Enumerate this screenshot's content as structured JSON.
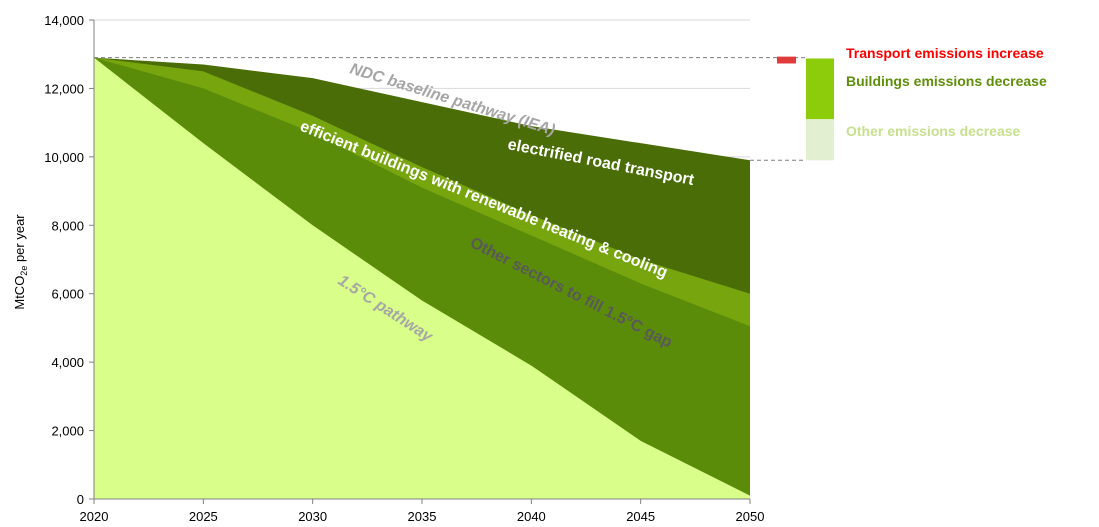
{
  "chart_data": {
    "type": "area",
    "x": [
      2020,
      2025,
      2030,
      2035,
      2040,
      2045,
      2050
    ],
    "ylabel": "MtCO2e per year",
    "ylabel_parts": {
      "main": "MtCO",
      "sub": "2e",
      "suffix": " per year"
    },
    "ylim": [
      0,
      14000
    ],
    "yticks": [
      0,
      2000,
      4000,
      6000,
      8000,
      10000,
      12000,
      14000
    ],
    "ytick_labels": [
      "0",
      "2,000",
      "4,000",
      "6,000",
      "8,000",
      "10,000",
      "12,000",
      "14,000"
    ],
    "xtick_labels": [
      "2020",
      "2025",
      "2030",
      "2035",
      "2040",
      "2045",
      "2050"
    ],
    "grid": true,
    "series": [
      {
        "key": "pathway_1_5",
        "values": [
          12900,
          10400,
          8000,
          5800,
          3900,
          1700,
          100
        ],
        "color": "#d9ff8a"
      },
      {
        "key": "other_sectors",
        "values": [
          12900,
          12000,
          10700,
          9100,
          7700,
          6300,
          5050
        ],
        "color": "#5a8c0a"
      },
      {
        "key": "buildings",
        "values": [
          12900,
          12500,
          11200,
          9700,
          8300,
          7000,
          6000
        ],
        "color": "#76a50e"
      },
      {
        "key": "ndc_baseline",
        "values": [
          12900,
          12700,
          12300,
          11600,
          10900,
          10400,
          9900
        ],
        "color": "#4a6d07"
      }
    ],
    "reference_line": {
      "value": 12900,
      "end_value": 9900
    },
    "area_labels": [
      {
        "text": "NDC baseline pathway (IEA)",
        "color": "#a6a6a6"
      },
      {
        "text": "electrified road transport",
        "color": "#ffffff"
      },
      {
        "text": "efficient buildings with renewable heating & cooling",
        "color": "#ffffff"
      },
      {
        "text": "Other sectors to fill 1.5°C gap",
        "color": "#595959"
      },
      {
        "text": "1.5°C pathway",
        "color": "#a6a6a6"
      }
    ],
    "side_bar": {
      "items": [
        {
          "label": "Transport emissions increase",
          "from": 12900,
          "to": 12700,
          "color": "#e03a3a",
          "text_color": "#ff0000"
        },
        {
          "label": "Buildings emissions decrease",
          "from": 12700,
          "to": 11100,
          "color": "#8ccc0a",
          "text_color": "#5f8f0a"
        },
        {
          "label": "Other emissions decrease",
          "from": 11100,
          "to": 9900,
          "color": "#e2efd1",
          "text_color": "#c6e08e"
        }
      ]
    }
  }
}
